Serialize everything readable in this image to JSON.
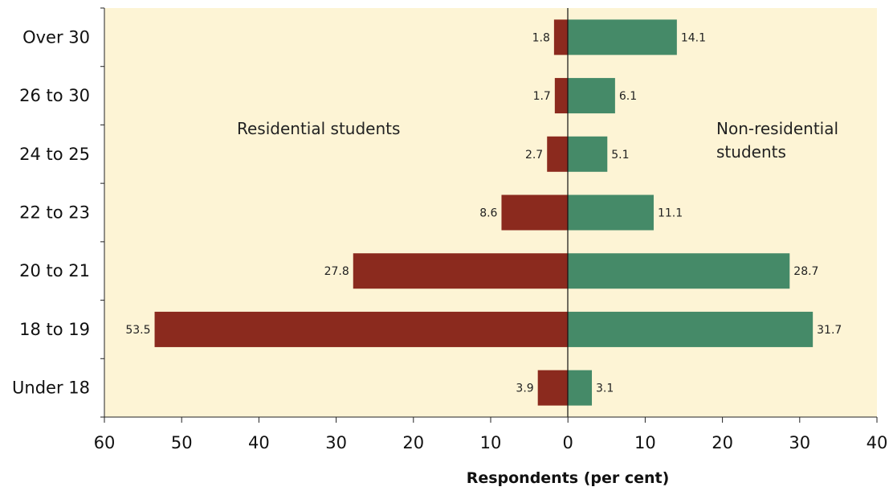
{
  "chart_data": {
    "type": "bar",
    "orientation": "horizontal-diverging",
    "categories": [
      "Over 30",
      "26 to 30",
      "24 to 25",
      "22 to 23",
      "20 to 21",
      "18 to 19",
      "Under 18"
    ],
    "series": [
      {
        "name": "Residential students",
        "side": "left",
        "color": "#8B2A1E",
        "values": [
          1.8,
          1.7,
          2.7,
          8.6,
          27.8,
          53.5,
          3.9
        ]
      },
      {
        "name": "Non-residential students",
        "side": "right",
        "color": "#458A68",
        "values": [
          14.1,
          6.1,
          5.1,
          11.1,
          28.7,
          31.7,
          3.1
        ]
      }
    ],
    "value_labels": {
      "left": [
        "1.8",
        "1.7",
        "2.7",
        "8.6",
        "27.8",
        "53.5",
        "3.9"
      ],
      "right": [
        "14.1",
        "6.1",
        "5.1",
        "11.1",
        "28.7",
        "31.7",
        "3.1"
      ]
    },
    "x_ticks": [
      "60",
      "50",
      "40",
      "30",
      "20",
      "10",
      "0",
      "10",
      "20",
      "30",
      "40"
    ],
    "xlim": [
      -60,
      40
    ],
    "annotations": {
      "left": [
        "Residential students"
      ],
      "right": [
        "Non-residential",
        "students"
      ]
    },
    "xlabel": "Respondents (per cent)",
    "ylabel": "",
    "title": "",
    "plot_background": "#FDF4D5",
    "grid": false,
    "legend": "none"
  }
}
